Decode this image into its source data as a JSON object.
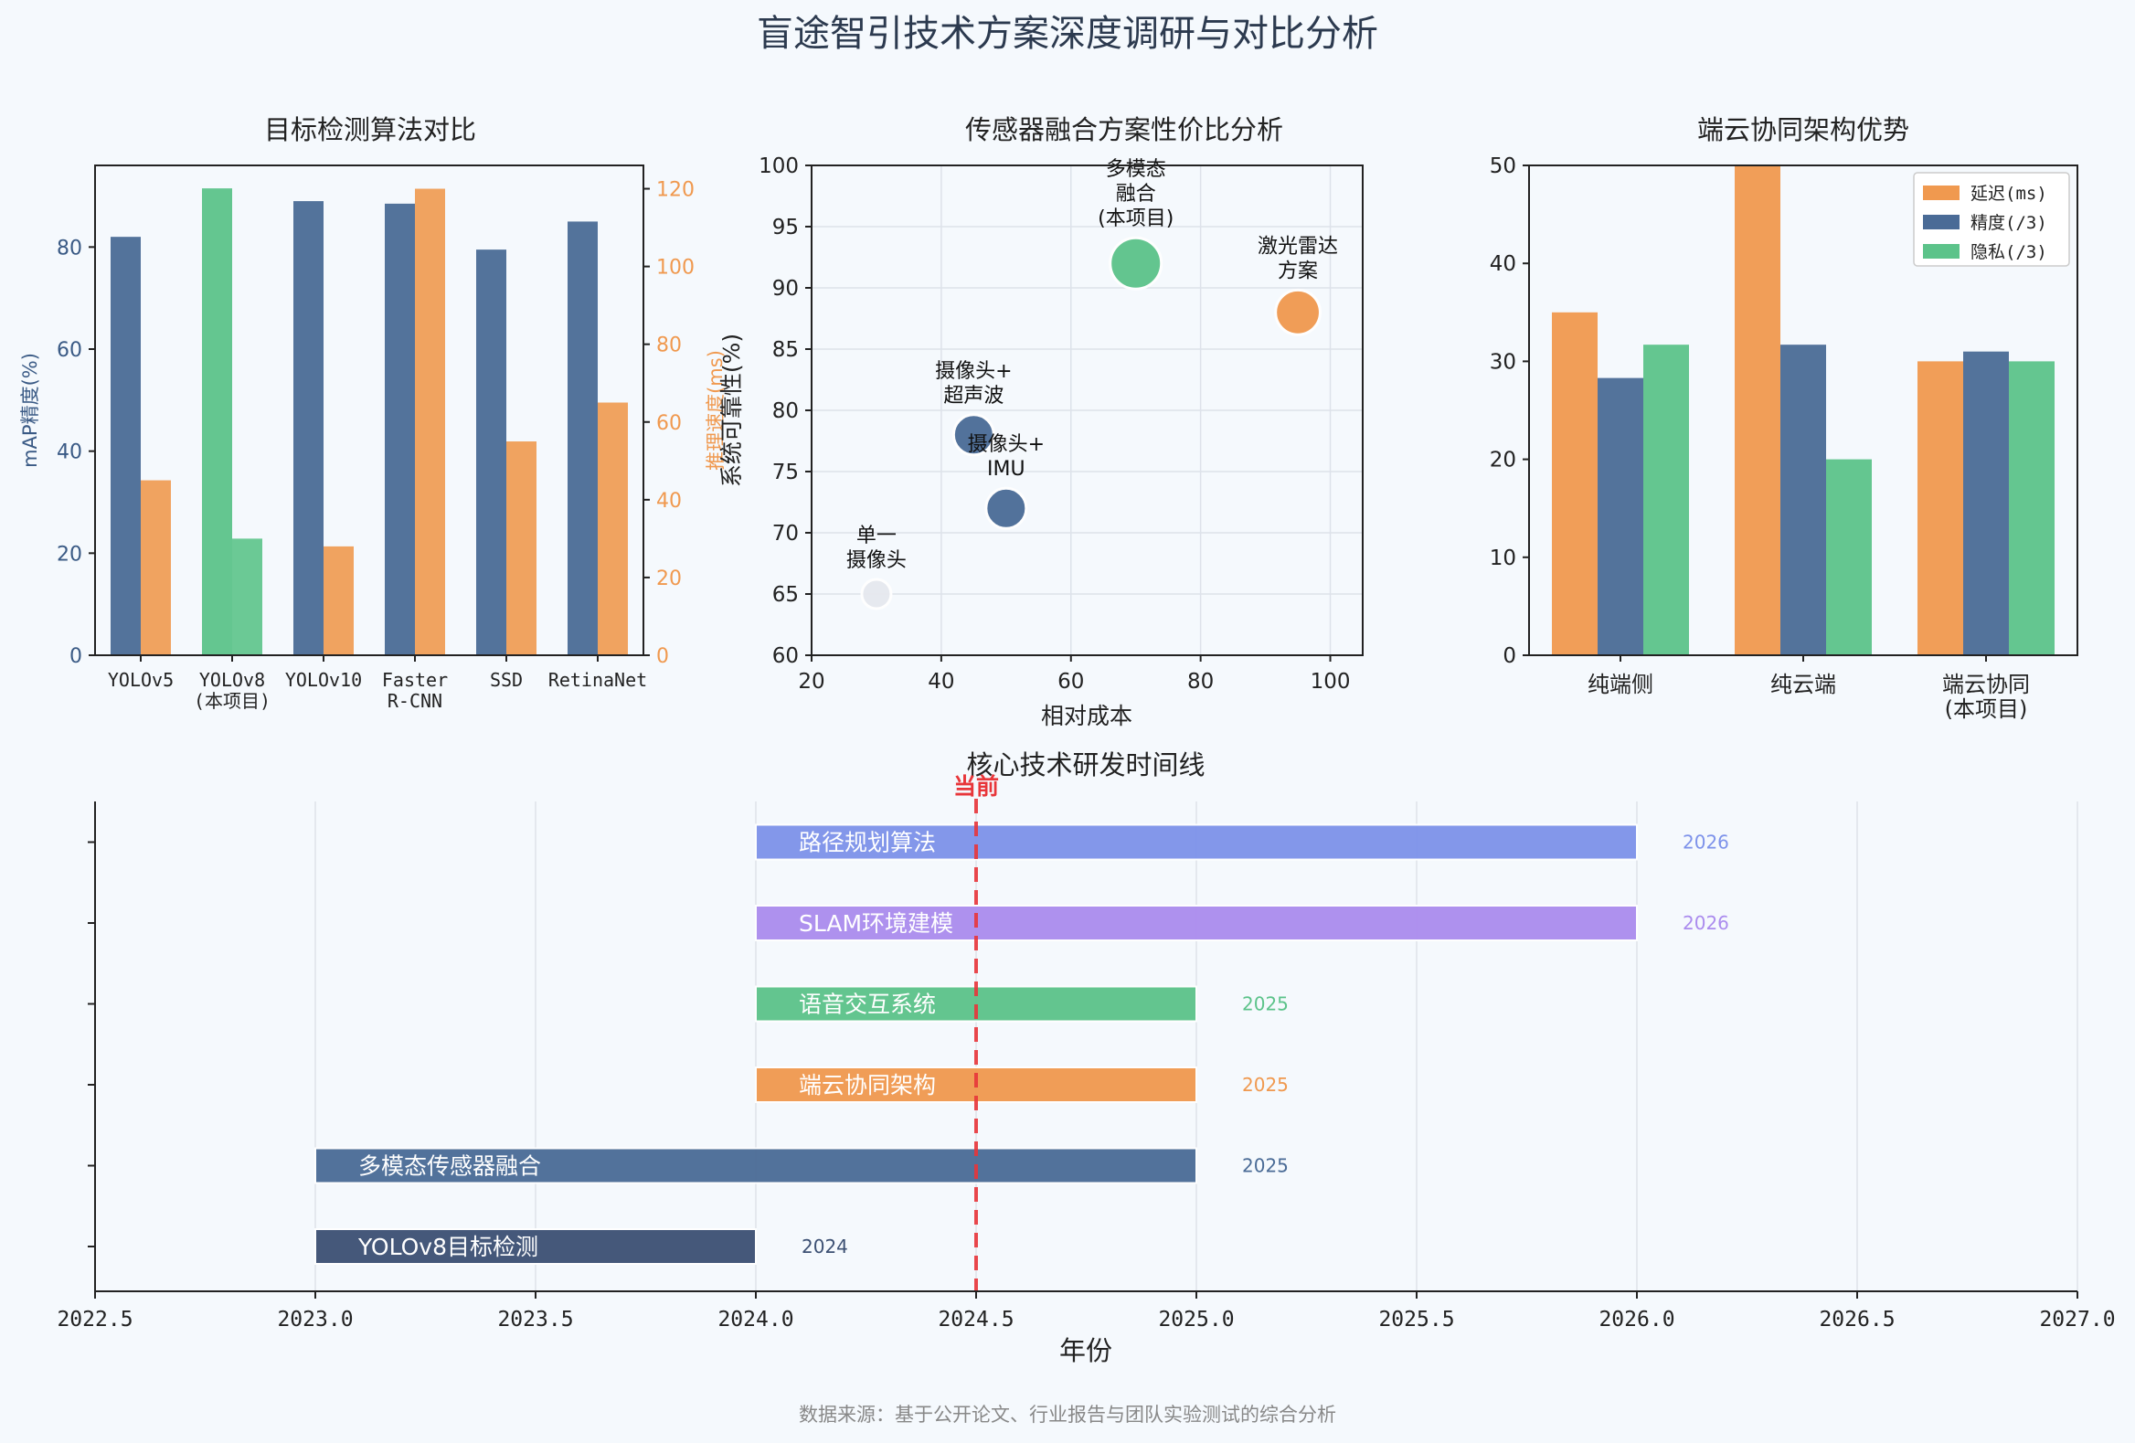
{
  "title": "盲途智引技术方案深度调研与对比分析",
  "footer": "数据来源：基于公开论文、行业报告与团队实验测试的综合分析",
  "colors": {
    "blue": "#4a6b96",
    "orange": "#f0994f",
    "green": "#5cc38a",
    "slate": "#3c5073",
    "periwinkle": "#7d92ea",
    "purple": "#ab8cee",
    "red": "#e8363a",
    "grey": "#e6e9ef"
  },
  "chart_data": [
    {
      "type": "bar",
      "title": "目标检测算法对比",
      "categories": [
        "YOLOv5",
        "YOLOv8\n(本项目)",
        "YOLOv10",
        "Faster\nR-CNN",
        "SSD",
        "RetinaNet"
      ],
      "series": [
        {
          "name": "mAP精度(%)",
          "axis": "left",
          "values": [
            82,
            91.5,
            89,
            88.5,
            79.5,
            85
          ],
          "highlight_index": 1
        },
        {
          "name": "推理速度(ms)",
          "axis": "right",
          "values": [
            45,
            30,
            28,
            120,
            55,
            65
          ]
        }
      ],
      "ylabel": "mAP精度(%)",
      "y2label": "推理速度(ms)",
      "ylim": [
        0,
        96
      ],
      "y2lim": [
        0,
        126
      ],
      "yticks": [
        0,
        20,
        40,
        60,
        80
      ],
      "y2ticks": [
        0,
        20,
        40,
        60,
        80,
        100,
        120
      ],
      "grid": false
    },
    {
      "type": "scatter",
      "title": "传感器融合方案性价比分析",
      "xlabel": "相对成本",
      "ylabel": "系统可靠性(%)",
      "xlim": [
        20,
        105
      ],
      "ylim": [
        60,
        100
      ],
      "xticks": [
        20,
        40,
        60,
        80,
        100
      ],
      "yticks": [
        60,
        65,
        70,
        75,
        80,
        85,
        90,
        95,
        100
      ],
      "grid": true,
      "points": [
        {
          "label": "单一\n摄像头",
          "x": 30,
          "y": 65,
          "size": 1,
          "color": "grey"
        },
        {
          "label": "摄像头+\n超声波",
          "x": 45,
          "y": 78,
          "size": 2,
          "color": "blue"
        },
        {
          "label": "摄像头+\nIMU",
          "x": 50,
          "y": 72,
          "size": 2,
          "color": "blue"
        },
        {
          "label": "多模态\n融合\n(本项目)",
          "x": 70,
          "y": 92,
          "size": 3,
          "color": "green"
        },
        {
          "label": "激光雷达\n方案",
          "x": 95,
          "y": 88,
          "size": 2.4,
          "color": "orange"
        }
      ]
    },
    {
      "type": "bar",
      "title": "端云协同架构优势",
      "categories": [
        "纯端侧",
        "纯云端",
        "端云协同\n(本项目)"
      ],
      "series": [
        {
          "name": "延迟(ms)",
          "values": [
            35,
            50,
            30
          ],
          "color": "orange"
        },
        {
          "name": "精度(/3)",
          "values": [
            28.3,
            31.7,
            31
          ],
          "color": "blue"
        },
        {
          "name": "隐私(/3)",
          "values": [
            31.7,
            20,
            30
          ],
          "color": "green"
        }
      ],
      "ylim": [
        0,
        50
      ],
      "yticks": [
        0,
        10,
        20,
        30,
        40,
        50
      ],
      "legend": "top-right",
      "grid": false
    },
    {
      "type": "gantt",
      "title": "核心技术研发时间线",
      "xlabel": "年份",
      "xlim": [
        2022.5,
        2027.0
      ],
      "xticks": [
        "2022.5",
        "2023.0",
        "2023.5",
        "2024.0",
        "2024.5",
        "2025.0",
        "2025.5",
        "2026.0",
        "2026.5",
        "2027.0"
      ],
      "current": {
        "x": 2024.5,
        "label": "当前"
      },
      "grid": true,
      "tasks": [
        {
          "name": "YOLOv8目标检测",
          "start": 2023.0,
          "end": 2024.0,
          "end_label": "2024",
          "color": "slate"
        },
        {
          "name": "多模态传感器融合",
          "start": 2023.0,
          "end": 2025.0,
          "end_label": "2025",
          "color": "blue"
        },
        {
          "name": "端云协同架构",
          "start": 2024.0,
          "end": 2025.0,
          "end_label": "2025",
          "color": "orange"
        },
        {
          "name": "语音交互系统",
          "start": 2024.0,
          "end": 2025.0,
          "end_label": "2025",
          "color": "green"
        },
        {
          "name": "SLAM环境建模",
          "start": 2024.0,
          "end": 2026.0,
          "end_label": "2026",
          "color": "purple"
        },
        {
          "name": "路径规划算法",
          "start": 2024.0,
          "end": 2026.0,
          "end_label": "2026",
          "color": "periwinkle"
        }
      ]
    }
  ]
}
